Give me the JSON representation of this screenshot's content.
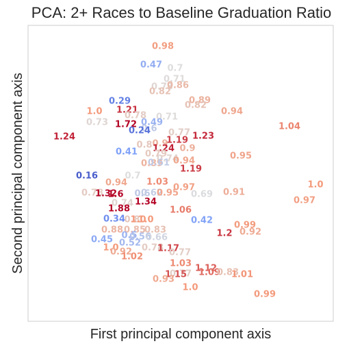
{
  "chart_data": {
    "type": "scatter",
    "title": "PCA: 2+ Races to Baseline Graduation Ratio",
    "xlabel": "First principal component axis",
    "ylabel": "Second principal component axis",
    "xlim": [
      0,
      529
    ],
    "ylim": [
      0,
      508
    ],
    "grid": false,
    "legend": "none",
    "colormap": "coolwarm",
    "color_range": [
      0.1,
      1.3
    ],
    "points": [
      {
        "x": 238,
        "y": 440,
        "label": "0.98"
      },
      {
        "x": 221,
        "y": 413,
        "label": "0.47"
      },
      {
        "x": 256,
        "y": 408,
        "label": "0.7"
      },
      {
        "x": 255,
        "y": 392,
        "label": "0.71"
      },
      {
        "x": 237,
        "y": 381,
        "label": "0.73"
      },
      {
        "x": 260,
        "y": 383,
        "label": "0.86"
      },
      {
        "x": 234,
        "y": 374,
        "label": "0.82"
      },
      {
        "x": 292,
        "y": 361,
        "label": "0.89"
      },
      {
        "x": 286,
        "y": 354,
        "label": "0.82"
      },
      {
        "x": 175,
        "y": 360,
        "label": "0.29"
      },
      {
        "x": 138,
        "y": 345,
        "label": "1.0"
      },
      {
        "x": 186,
        "y": 347,
        "label": "1.21"
      },
      {
        "x": 198,
        "y": 339,
        "label": "0.78"
      },
      {
        "x": 339,
        "y": 345,
        "label": "0.94"
      },
      {
        "x": 244,
        "y": 337,
        "label": "0.71"
      },
      {
        "x": 142,
        "y": 329,
        "label": "0.73"
      },
      {
        "x": 184,
        "y": 326,
        "label": "1.72"
      },
      {
        "x": 222,
        "y": 329,
        "label": "0.49"
      },
      {
        "x": 423,
        "y": 323,
        "label": "1.04"
      },
      {
        "x": 218,
        "y": 320,
        "label": "0.6"
      },
      {
        "x": 204,
        "y": 317,
        "label": "0.24"
      },
      {
        "x": 262,
        "y": 314,
        "label": "0.77"
      },
      {
        "x": 94,
        "y": 308,
        "label": "1.24"
      },
      {
        "x": 297,
        "y": 309,
        "label": "1.23"
      },
      {
        "x": 259,
        "y": 303,
        "label": "1.19"
      },
      {
        "x": 234,
        "y": 298,
        "label": "0.9"
      },
      {
        "x": 211,
        "y": 296,
        "label": "0.8"
      },
      {
        "x": 239,
        "y": 291,
        "label": "1.24"
      },
      {
        "x": 274,
        "y": 291,
        "label": "0.9"
      },
      {
        "x": 185,
        "y": 286,
        "label": "0.41"
      },
      {
        "x": 228,
        "y": 283,
        "label": "0.79"
      },
      {
        "x": 352,
        "y": 280,
        "label": "0.95"
      },
      {
        "x": 245,
        "y": 276,
        "label": "0.74"
      },
      {
        "x": 269,
        "y": 273,
        "label": "0.94"
      },
      {
        "x": 222,
        "y": 269,
        "label": "0.89"
      },
      {
        "x": 232,
        "y": 270,
        "label": "0.61"
      },
      {
        "x": 279,
        "y": 261,
        "label": "1.19"
      },
      {
        "x": 127,
        "y": 251,
        "label": "0.16"
      },
      {
        "x": 194,
        "y": 251,
        "label": "0.7"
      },
      {
        "x": 170,
        "y": 241,
        "label": "0.94"
      },
      {
        "x": 230,
        "y": 242,
        "label": "1.03"
      },
      {
        "x": 461,
        "y": 238,
        "label": "1.0"
      },
      {
        "x": 269,
        "y": 234,
        "label": "0.97"
      },
      {
        "x": 135,
        "y": 226,
        "label": "0.78"
      },
      {
        "x": 155,
        "y": 225,
        "label": "1.32"
      },
      {
        "x": 169,
        "y": 224,
        "label": "1.6"
      },
      {
        "x": 208,
        "y": 225,
        "label": "0.6"
      },
      {
        "x": 222,
        "y": 226,
        "label": "0.62"
      },
      {
        "x": 245,
        "y": 226,
        "label": "0.95"
      },
      {
        "x": 342,
        "y": 227,
        "label": "0.91"
      },
      {
        "x": 295,
        "y": 224,
        "label": "0.69"
      },
      {
        "x": 179,
        "y": 211,
        "label": "0.74"
      },
      {
        "x": 213,
        "y": 213,
        "label": "1.34"
      },
      {
        "x": 445,
        "y": 215,
        "label": "0.97"
      },
      {
        "x": 174,
        "y": 203,
        "label": "1.88"
      },
      {
        "x": 264,
        "y": 201,
        "label": "1.06"
      },
      {
        "x": 167,
        "y": 188,
        "label": "0.34"
      },
      {
        "x": 193,
        "y": 187,
        "label": "0.8"
      },
      {
        "x": 202,
        "y": 187,
        "label": "1.0"
      },
      {
        "x": 213,
        "y": 187,
        "label": "1.0"
      },
      {
        "x": 295,
        "y": 186,
        "label": "0.42"
      },
      {
        "x": 358,
        "y": 179,
        "label": "0.99"
      },
      {
        "x": 164,
        "y": 172,
        "label": "0.88"
      },
      {
        "x": 197,
        "y": 172,
        "label": "0.85"
      },
      {
        "x": 227,
        "y": 172,
        "label": "0.83"
      },
      {
        "x": 189,
        "y": 164,
        "label": "0.5"
      },
      {
        "x": 205,
        "y": 162,
        "label": "0.56"
      },
      {
        "x": 328,
        "y": 167,
        "label": "1.2"
      },
      {
        "x": 366,
        "y": 169,
        "label": "0.92"
      },
      {
        "x": 149,
        "y": 158,
        "label": "0.45"
      },
      {
        "x": 229,
        "y": 161,
        "label": "0.66"
      },
      {
        "x": 190,
        "y": 153,
        "label": "0.52"
      },
      {
        "x": 162,
        "y": 146,
        "label": "1.0"
      },
      {
        "x": 223,
        "y": 146,
        "label": "0.78"
      },
      {
        "x": 246,
        "y": 145,
        "label": "1.17"
      },
      {
        "x": 177,
        "y": 140,
        "label": "0.92"
      },
      {
        "x": 193,
        "y": 133,
        "label": "1.02"
      },
      {
        "x": 263,
        "y": 139,
        "label": "0.77"
      },
      {
        "x": 264,
        "y": 123,
        "label": "1.03"
      },
      {
        "x": 301,
        "y": 116,
        "label": "1.12"
      },
      {
        "x": 264,
        "y": 108,
        "label": "0.77"
      },
      {
        "x": 306,
        "y": 110,
        "label": "1.09"
      },
      {
        "x": 333,
        "y": 110,
        "label": "0.83"
      },
      {
        "x": 354,
        "y": 107,
        "label": "1.01"
      },
      {
        "x": 257,
        "y": 107,
        "label": "1.15"
      },
      {
        "x": 239,
        "y": 100,
        "label": "0.93"
      },
      {
        "x": 278,
        "y": 88,
        "label": "1.0"
      },
      {
        "x": 387,
        "y": 78,
        "label": "0.99"
      }
    ]
  }
}
